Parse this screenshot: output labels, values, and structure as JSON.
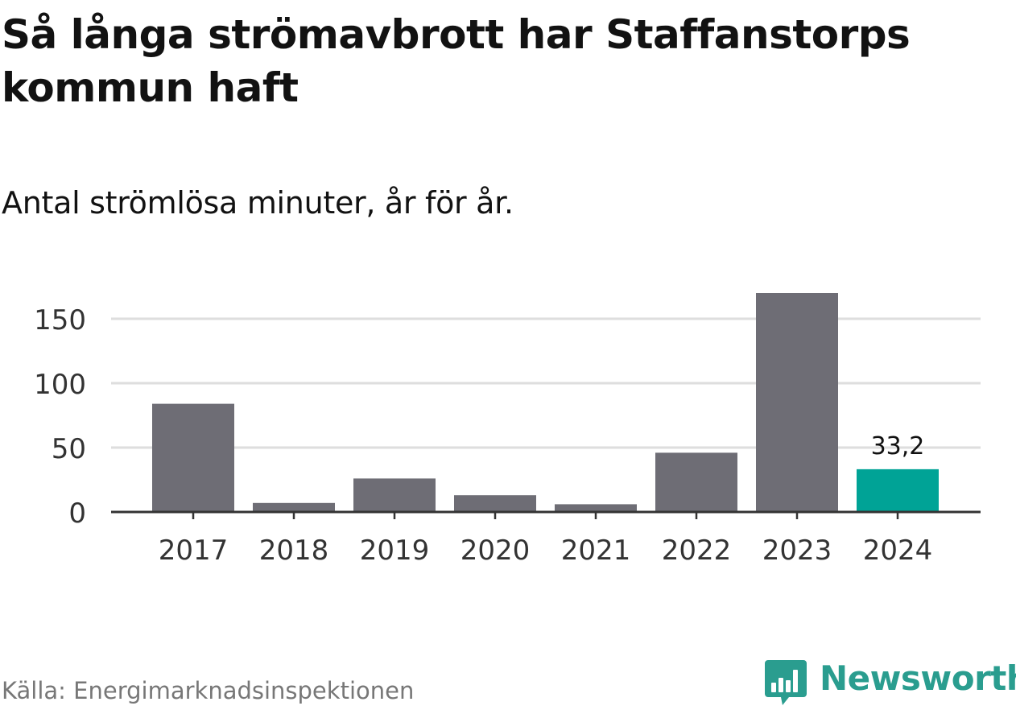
{
  "title": "Så långa strömavbrott har Staffanstorps kommun haft",
  "subtitle": "Antal strömlösa minuter, år för år.",
  "source": "Källa: Energimarknadsinspektionen",
  "brand": "Newsworthy",
  "colors": {
    "bar_default": "#6e6d75",
    "bar_highlight": "#00a396",
    "gridline": "#dedede",
    "axis": "#333333",
    "brand": "#2a9d8f"
  },
  "chart_data": {
    "type": "bar",
    "categories": [
      "2017",
      "2018",
      "2019",
      "2020",
      "2021",
      "2022",
      "2023",
      "2024"
    ],
    "values": [
      84,
      7,
      26,
      13,
      6,
      46,
      170,
      33.2
    ],
    "highlight_index": 7,
    "data_labels": [
      {
        "index": 7,
        "text": "33,2"
      }
    ],
    "title": "Så långa strömavbrott har Staffanstorps kommun haft",
    "xlabel": "",
    "ylabel": "",
    "ylim": [
      0,
      175
    ],
    "yticks": [
      0,
      50,
      100,
      150
    ],
    "ytick_labels": [
      "0",
      "50",
      "100",
      "150"
    ],
    "grid": true
  }
}
